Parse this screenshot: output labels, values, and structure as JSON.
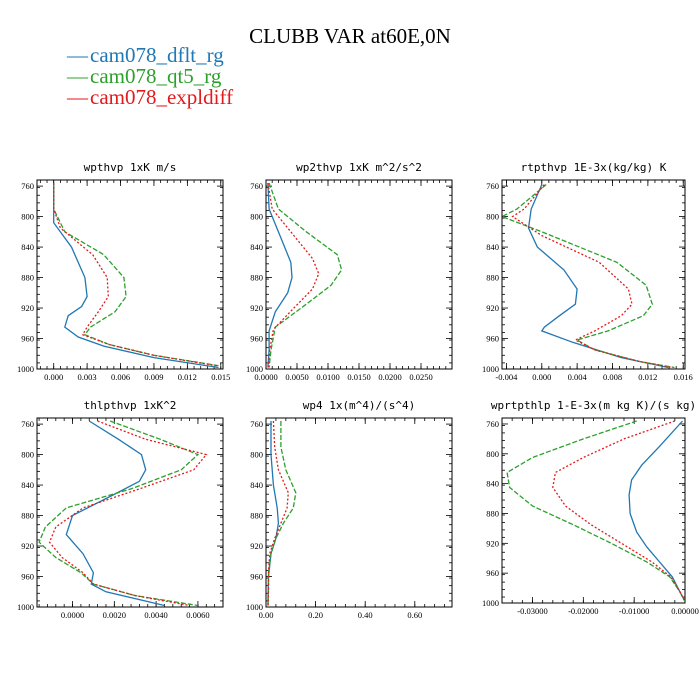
{
  "figure_title": "CLUBB VAR at60E,0N",
  "legend": [
    {
      "label": "cam078_dflt_rg",
      "color": "#1f77b4"
    },
    {
      "label": "cam078_qt5_rg",
      "color": "#2ca02c"
    },
    {
      "label": "cam078_expldiff",
      "color": "#e31a1c"
    }
  ],
  "chart_data": [
    {
      "type": "line",
      "title": "wpthvp  1xK m/s",
      "xlim": [
        -0.0015,
        0.0152
      ],
      "ylim": [
        1000,
        752
      ],
      "xticks": [
        0.0,
        0.003,
        0.006,
        0.009,
        0.012,
        0.015
      ],
      "xticklabels": [
        "0.000",
        "0.003",
        "0.006",
        "0.009",
        "0.012",
        "0.015"
      ],
      "yticks": [
        760,
        800,
        840,
        880,
        920,
        960,
        1000
      ],
      "yticklabels": [
        "760",
        "800",
        "840",
        "880",
        "920",
        "960",
        "1000"
      ],
      "series": [
        {
          "name": "cam078_dflt_rg",
          "y": [
            756,
            790,
            808,
            840,
            880,
            905,
            918,
            930,
            945,
            958,
            970,
            985,
            998
          ],
          "x": [
            0.0,
            0.0,
            0.0,
            0.0016,
            0.0028,
            0.003,
            0.0025,
            0.0013,
            0.001,
            0.0022,
            0.0045,
            0.009,
            0.0148
          ]
        },
        {
          "name": "cam078_qt5_rg",
          "y": [
            756,
            790,
            820,
            850,
            880,
            905,
            925,
            945,
            955,
            968,
            982,
            996
          ],
          "x": [
            0.0,
            0.0,
            0.001,
            0.0045,
            0.0063,
            0.0065,
            0.0055,
            0.0033,
            0.0028,
            0.005,
            0.009,
            0.015
          ]
        },
        {
          "name": "cam078_expldiff",
          "y": [
            756,
            790,
            815,
            850,
            880,
            905,
            925,
            945,
            955,
            968,
            982,
            996
          ],
          "x": [
            0.0,
            0.0,
            0.0006,
            0.0035,
            0.0048,
            0.0049,
            0.004,
            0.003,
            0.0026,
            0.005,
            0.009,
            0.0148
          ]
        }
      ]
    },
    {
      "type": "line",
      "title": "wp2thvp  1xK m^2/s^2",
      "xlim": [
        0.0,
        0.03
      ],
      "ylim": [
        1000,
        752
      ],
      "xticks": [
        0.0,
        0.005,
        0.01,
        0.015,
        0.02,
        0.025
      ],
      "xticklabels": [
        "0.0000",
        "0.0050",
        "0.0100",
        "0.0150",
        "0.0200",
        "0.0250"
      ],
      "yticks": [
        760,
        800,
        840,
        880,
        920,
        960,
        1000
      ],
      "yticklabels": [
        "760",
        "800",
        "840",
        "880",
        "920",
        "960",
        "1000"
      ],
      "series": [
        {
          "name": "cam078_dflt_rg",
          "y": [
            756,
            790,
            830,
            860,
            880,
            900,
            925,
            950,
            975,
            998
          ],
          "x": [
            0.0003,
            0.0005,
            0.0025,
            0.004,
            0.0042,
            0.0035,
            0.0015,
            0.0005,
            0.0005,
            0.0003
          ]
        },
        {
          "name": "cam078_qt5_rg",
          "y": [
            756,
            790,
            820,
            850,
            870,
            890,
            915,
            945,
            975,
            998
          ],
          "x": [
            0.0005,
            0.002,
            0.0065,
            0.0115,
            0.0122,
            0.0105,
            0.0065,
            0.0015,
            0.0008,
            0.0005
          ]
        },
        {
          "name": "cam078_expldiff",
          "y": [
            756,
            790,
            825,
            855,
            875,
            895,
            920,
            948,
            975,
            998
          ],
          "x": [
            0.0003,
            0.001,
            0.0045,
            0.0075,
            0.0085,
            0.0075,
            0.0045,
            0.0012,
            0.0006,
            0.0004
          ]
        }
      ]
    },
    {
      "type": "line",
      "title": "rtpthvp  1E-3x(kg/kg) K",
      "xlim": [
        -0.0045,
        0.0162
      ],
      "ylim": [
        1000,
        752
      ],
      "xticks": [
        -0.004,
        0.0,
        0.004,
        0.008,
        0.012,
        0.016
      ],
      "xticklabels": [
        "-0.004",
        "0.000",
        "0.004",
        "0.008",
        "0.012",
        "0.016"
      ],
      "yticks": [
        760,
        800,
        840,
        880,
        920,
        960,
        1000
      ],
      "yticklabels": [
        "760",
        "800",
        "840",
        "880",
        "920",
        "960",
        "1000"
      ],
      "series": [
        {
          "name": "cam078_dflt_rg",
          "y": [
            758,
            790,
            815,
            840,
            870,
            895,
            915,
            930,
            945,
            950,
            965,
            985,
            998
          ],
          "x": [
            0.0,
            -0.0012,
            -0.0015,
            -0.0005,
            0.0025,
            0.004,
            0.0038,
            0.002,
            0.0003,
            0.0,
            0.0035,
            0.009,
            0.0143
          ]
        },
        {
          "name": "cam078_qt5_rg",
          "y": [
            758,
            790,
            800,
            820,
            860,
            890,
            915,
            930,
            950,
            962,
            975,
            990,
            998
          ],
          "x": [
            0.0005,
            -0.0028,
            -0.0045,
            0.0,
            0.0085,
            0.0118,
            0.0125,
            0.0115,
            0.0075,
            0.004,
            0.006,
            0.011,
            0.015
          ]
        },
        {
          "name": "cam078_expldiff",
          "y": [
            758,
            790,
            800,
            825,
            860,
            895,
            915,
            930,
            950,
            962,
            975,
            990,
            998
          ],
          "x": [
            0.0003,
            -0.002,
            -0.0033,
            0.0,
            0.0065,
            0.0098,
            0.0102,
            0.009,
            0.006,
            0.0038,
            0.006,
            0.011,
            0.0148
          ]
        }
      ]
    },
    {
      "type": "line",
      "title": "thlpthvp  1xK^2",
      "xlim": [
        -0.0017,
        0.0072
      ],
      "ylim": [
        1000,
        752
      ],
      "xticks": [
        0.0,
        0.002,
        0.004,
        0.006
      ],
      "xticklabels": [
        "0.0000",
        "0.0020",
        "0.0040",
        "0.0060"
      ],
      "yticks": [
        760,
        800,
        840,
        880,
        920,
        960,
        1000
      ],
      "yticklabels": [
        "760",
        "800",
        "840",
        "880",
        "920",
        "960",
        "1000"
      ],
      "series": [
        {
          "name": "cam078_dflt_rg",
          "y": [
            756,
            780,
            800,
            820,
            835,
            855,
            880,
            905,
            930,
            955,
            970,
            980,
            998
          ],
          "x": [
            0.0008,
            0.0022,
            0.0033,
            0.0035,
            0.0032,
            0.0018,
            0.0,
            -0.0003,
            0.0005,
            0.001,
            0.0009,
            0.0016,
            0.0044
          ]
        },
        {
          "name": "cam078_qt5_rg",
          "y": [
            756,
            780,
            800,
            820,
            845,
            870,
            895,
            915,
            935,
            955,
            970,
            985,
            998
          ],
          "x": [
            0.0018,
            0.0042,
            0.006,
            0.0052,
            0.0028,
            -0.0003,
            -0.0013,
            -0.0016,
            -0.0008,
            0.0004,
            0.001,
            0.003,
            0.006
          ]
        },
        {
          "name": "cam078_expldiff",
          "y": [
            756,
            780,
            800,
            820,
            845,
            870,
            895,
            915,
            935,
            955,
            970,
            985,
            998
          ],
          "x": [
            0.0012,
            0.0035,
            0.0064,
            0.0058,
            0.0032,
            0.0005,
            -0.0008,
            -0.0011,
            -0.0005,
            0.0005,
            0.001,
            0.003,
            0.0056
          ]
        }
      ]
    },
    {
      "type": "line",
      "title": "wp4  1x(m^4)/(s^4)",
      "xlim": [
        0.0,
        0.75
      ],
      "ylim": [
        1000,
        752
      ],
      "xticks": [
        0.0,
        0.2,
        0.4,
        0.6
      ],
      "xticklabels": [
        "0.00",
        "0.20",
        "0.40",
        "0.60"
      ],
      "yticks": [
        760,
        800,
        840,
        880,
        920,
        960,
        1000
      ],
      "yticklabels": [
        "760",
        "800",
        "840",
        "880",
        "920",
        "960",
        "1000"
      ],
      "series": [
        {
          "name": "cam078_dflt_rg",
          "y": [
            756,
            800,
            840,
            870,
            890,
            910,
            930,
            960,
            990,
            998
          ],
          "x": [
            0.02,
            0.02,
            0.03,
            0.045,
            0.05,
            0.04,
            0.02,
            0.01,
            0.008,
            0.008
          ]
        },
        {
          "name": "cam078_qt5_rg",
          "y": [
            756,
            790,
            820,
            850,
            870,
            890,
            910,
            930,
            955,
            975,
            998
          ],
          "x": [
            0.06,
            0.06,
            0.08,
            0.12,
            0.11,
            0.07,
            0.04,
            0.02,
            0.01,
            0.01,
            0.008
          ]
        },
        {
          "name": "cam078_expldiff",
          "y": [
            756,
            790,
            820,
            850,
            870,
            890,
            910,
            930,
            955,
            975,
            998
          ],
          "x": [
            0.03,
            0.035,
            0.05,
            0.09,
            0.085,
            0.06,
            0.035,
            0.015,
            0.01,
            0.01,
            0.008
          ]
        }
      ]
    },
    {
      "type": "line",
      "title": "wprtpthlp  1-E-3x(m kg K)/(s kg)",
      "xlim": [
        -0.036,
        0.0
      ],
      "ylim": [
        1000,
        752
      ],
      "xticks": [
        -0.03,
        -0.02,
        -0.01,
        0.0
      ],
      "xticklabels": [
        "-0.03000",
        "-0.02000",
        "-0.01000",
        "0.00000"
      ],
      "yticks": [
        760,
        800,
        840,
        880,
        920,
        960,
        1000
      ],
      "yticklabels": [
        "760",
        "800",
        "840",
        "880",
        "920",
        "960",
        "1000"
      ],
      "series": [
        {
          "name": "cam078_dflt_rg",
          "y": [
            756,
            790,
            815,
            835,
            855,
            880,
            905,
            925,
            945,
            965,
            985,
            998
          ],
          "x": [
            -0.0005,
            -0.005,
            -0.0085,
            -0.0105,
            -0.011,
            -0.0108,
            -0.0095,
            -0.0075,
            -0.005,
            -0.0025,
            -0.001,
            0.0
          ]
        },
        {
          "name": "cam078_qt5_rg",
          "y": [
            756,
            780,
            805,
            825,
            845,
            870,
            895,
            920,
            945,
            965,
            985,
            998
          ],
          "x": [
            -0.0095,
            -0.02,
            -0.03,
            -0.035,
            -0.0345,
            -0.03,
            -0.022,
            -0.0145,
            -0.0075,
            -0.003,
            -0.001,
            0.0
          ]
        },
        {
          "name": "cam078_expldiff",
          "y": [
            756,
            780,
            805,
            825,
            845,
            870,
            895,
            920,
            945,
            965,
            985,
            998
          ],
          "x": [
            -0.002,
            -0.012,
            -0.02,
            -0.0255,
            -0.026,
            -0.0235,
            -0.0185,
            -0.0125,
            -0.0065,
            -0.0028,
            -0.001,
            0.0
          ]
        }
      ]
    }
  ]
}
